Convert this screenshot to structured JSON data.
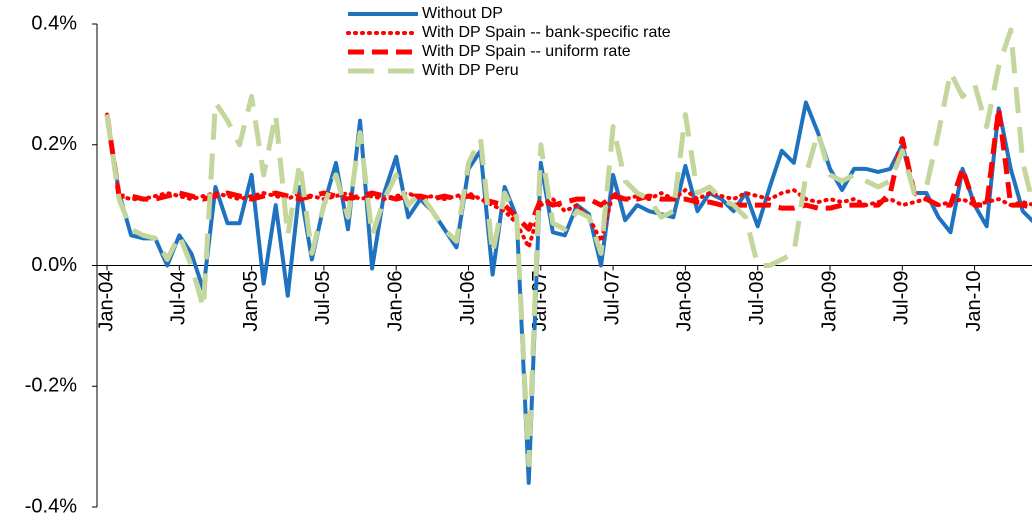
{
  "chart_data": {
    "type": "line",
    "categories": [
      "Jan-04",
      null,
      null,
      null,
      null,
      null,
      "Jul-04",
      null,
      null,
      null,
      null,
      null,
      "Jan-05",
      null,
      null,
      null,
      null,
      null,
      "Jul-05",
      null,
      null,
      null,
      null,
      null,
      "Jan-06",
      null,
      null,
      null,
      null,
      null,
      "Jul-06",
      null,
      null,
      null,
      null,
      null,
      "Jan-07",
      null,
      null,
      null,
      null,
      null,
      "Jul-07",
      null,
      null,
      null,
      null,
      null,
      "Jan-08",
      null,
      null,
      null,
      null,
      null,
      "Jul-08",
      null,
      null,
      null,
      null,
      null,
      "Jan-09",
      null,
      null,
      null,
      null,
      null,
      "Jul-09",
      null,
      null,
      null,
      null,
      null,
      "Jan-10",
      null,
      null,
      null,
      null,
      null
    ],
    "series": [
      {
        "name": "Without DP",
        "color": "#1f72c0",
        "dash": "solid",
        "values": [
          0.25,
          0.12,
          0.05,
          0.045,
          0.045,
          0.0,
          0.05,
          0.02,
          -0.04,
          0.13,
          0.07,
          0.07,
          0.15,
          -0.03,
          0.1,
          -0.05,
          0.13,
          0.01,
          0.1,
          0.17,
          0.06,
          0.24,
          -0.005,
          0.12,
          0.18,
          0.08,
          0.11,
          0.09,
          0.06,
          0.03,
          0.16,
          0.19,
          -0.015,
          0.13,
          0.08,
          -0.36,
          0.17,
          0.055,
          0.05,
          0.1,
          0.085,
          0.0,
          0.15,
          0.075,
          0.1,
          0.09,
          0.085,
          0.08,
          0.165,
          0.09,
          0.12,
          0.11,
          0.09,
          0.12,
          0.065,
          0.13,
          0.19,
          0.17,
          0.27,
          0.22,
          0.16,
          0.125,
          0.16,
          0.16,
          0.155,
          0.16,
          0.2,
          0.12,
          0.12,
          0.08,
          0.055,
          0.16,
          0.1,
          0.065,
          0.26,
          0.16,
          0.09,
          0.07
        ]
      },
      {
        "name": "With DP Spain -- bank-specific rate",
        "color": "#ff0000",
        "dash": "dotted",
        "values": [
          0.25,
          0.115,
          0.11,
          0.11,
          0.115,
          0.12,
          0.115,
          0.11,
          0.115,
          0.12,
          0.115,
          0.11,
          0.115,
          0.12,
          0.115,
          0.11,
          0.12,
          0.115,
          0.11,
          0.115,
          0.12,
          0.11,
          0.115,
          0.11,
          0.115,
          0.12,
          0.11,
          0.115,
          0.11,
          0.115,
          0.12,
          0.11,
          0.1,
          0.09,
          0.07,
          0.03,
          0.1,
          0.11,
          0.09,
          0.1,
          0.08,
          0.04,
          0.12,
          0.11,
          0.115,
          0.11,
          0.12,
          0.11,
          0.125,
          0.11,
          0.12,
          0.115,
          0.11,
          0.12,
          0.115,
          0.11,
          0.12,
          0.125,
          0.11,
          0.105,
          0.11,
          0.105,
          0.11,
          0.1,
          0.105,
          0.11,
          0.1,
          0.105,
          0.11,
          0.1,
          0.105,
          0.11,
          0.1,
          0.105,
          0.11,
          0.1,
          0.105,
          0.1
        ]
      },
      {
        "name": "With DP Spain -- uniform rate",
        "color": "#ff0000",
        "dash": "dashed",
        "values": [
          0.25,
          0.115,
          0.115,
          0.11,
          0.11,
          0.115,
          0.12,
          0.115,
          0.11,
          0.115,
          0.12,
          0.115,
          0.11,
          0.115,
          0.12,
          0.115,
          0.11,
          0.115,
          0.12,
          0.115,
          0.11,
          0.115,
          0.12,
          0.115,
          0.11,
          0.115,
          0.115,
          0.11,
          0.115,
          0.11,
          0.115,
          0.11,
          0.105,
          0.1,
          0.08,
          0.06,
          0.11,
          0.1,
          0.105,
          0.11,
          0.11,
          0.1,
          0.115,
          0.11,
          0.11,
          0.115,
          0.11,
          0.11,
          0.11,
          0.105,
          0.105,
          0.1,
          0.1,
          0.1,
          0.1,
          0.1,
          0.095,
          0.095,
          0.1,
          0.095,
          0.095,
          0.1,
          0.1,
          0.1,
          0.1,
          0.12,
          0.21,
          0.12,
          0.11,
          0.1,
          0.1,
          0.16,
          0.1,
          0.1,
          0.26,
          0.1,
          0.1,
          0.095
        ]
      },
      {
        "name": "With DP Peru",
        "color": "#c3d69b",
        "dash": "longdash",
        "values": [
          0.25,
          0.11,
          0.06,
          0.05,
          0.045,
          0.01,
          0.05,
          0.0,
          -0.07,
          0.27,
          0.24,
          0.2,
          0.28,
          0.15,
          0.25,
          0.05,
          0.17,
          0.02,
          0.1,
          0.15,
          0.08,
          0.22,
          0.05,
          0.11,
          0.15,
          0.1,
          0.12,
          0.09,
          0.06,
          0.04,
          0.17,
          0.21,
          0.02,
          0.12,
          0.08,
          -0.33,
          0.2,
          0.07,
          0.06,
          0.09,
          0.08,
          0.02,
          0.23,
          0.14,
          0.12,
          0.11,
          0.08,
          0.09,
          0.25,
          0.12,
          0.13,
          0.11,
          0.1,
          0.08,
          0.0,
          0.0,
          0.01,
          0.02,
          0.15,
          0.22,
          0.15,
          0.14,
          0.15,
          0.14,
          0.13,
          0.14,
          0.19,
          0.12,
          0.13,
          0.22,
          0.32,
          0.28,
          0.3,
          0.23,
          0.33,
          0.39,
          0.17,
          0.09
        ]
      }
    ],
    "ylim": [
      -0.4,
      0.4
    ],
    "yticks": [
      {
        "value": -0.4,
        "label": "-0.4%"
      },
      {
        "value": -0.2,
        "label": "-0.2%"
      },
      {
        "value": 0.0,
        "label": "0.0%"
      },
      {
        "value": 0.2,
        "label": "0.2%"
      },
      {
        "value": 0.4,
        "label": "0.4%"
      }
    ],
    "grid": false,
    "legend": "top"
  }
}
